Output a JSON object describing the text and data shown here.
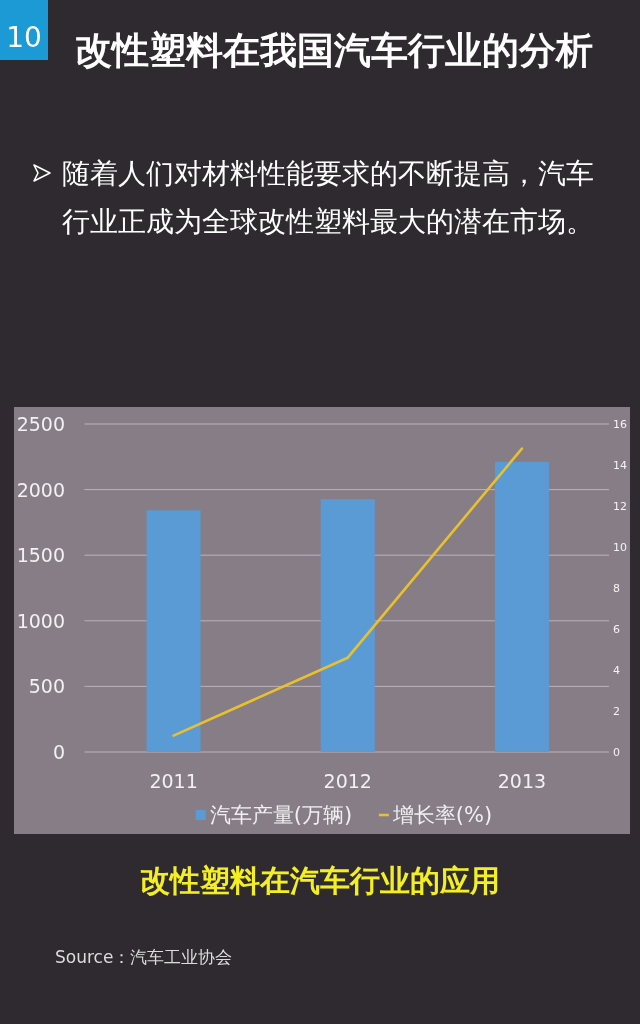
{
  "chart_data": {
    "type": "bar",
    "title": "改性塑料在我国汽车行业的分析",
    "subtitle": "随着人们对材料性能要求的不断提高，汽车行业正成为全球改性塑料最大的潜在市场。",
    "annotations": [
      "10",
      "改性塑料在汽车行业的应用",
      "Source：汽车工业协会"
    ],
    "categories": [
      "2011",
      "2012",
      "2013"
    ],
    "series": [
      {
        "name": "汽车产量(万辆)",
        "color": "#5b9bd5",
        "values": [
          1842,
          1927,
          2212
        ]
      },
      {
        "name": "增长率(%)",
        "type": "line",
        "axis": "y2",
        "color": "#e8c12c",
        "values": [
          0.8,
          4.6,
          14.8
        ]
      }
    ],
    "ylim": [
      0,
      2500
    ],
    "yticks": [
      0,
      500,
      1000,
      1500,
      2000,
      2500
    ],
    "y2lim": [
      0,
      16
    ],
    "y2ticks": [
      0,
      2,
      4,
      6,
      8,
      10,
      12,
      14,
      16
    ],
    "grid": "y",
    "legend": "bottom"
  }
}
